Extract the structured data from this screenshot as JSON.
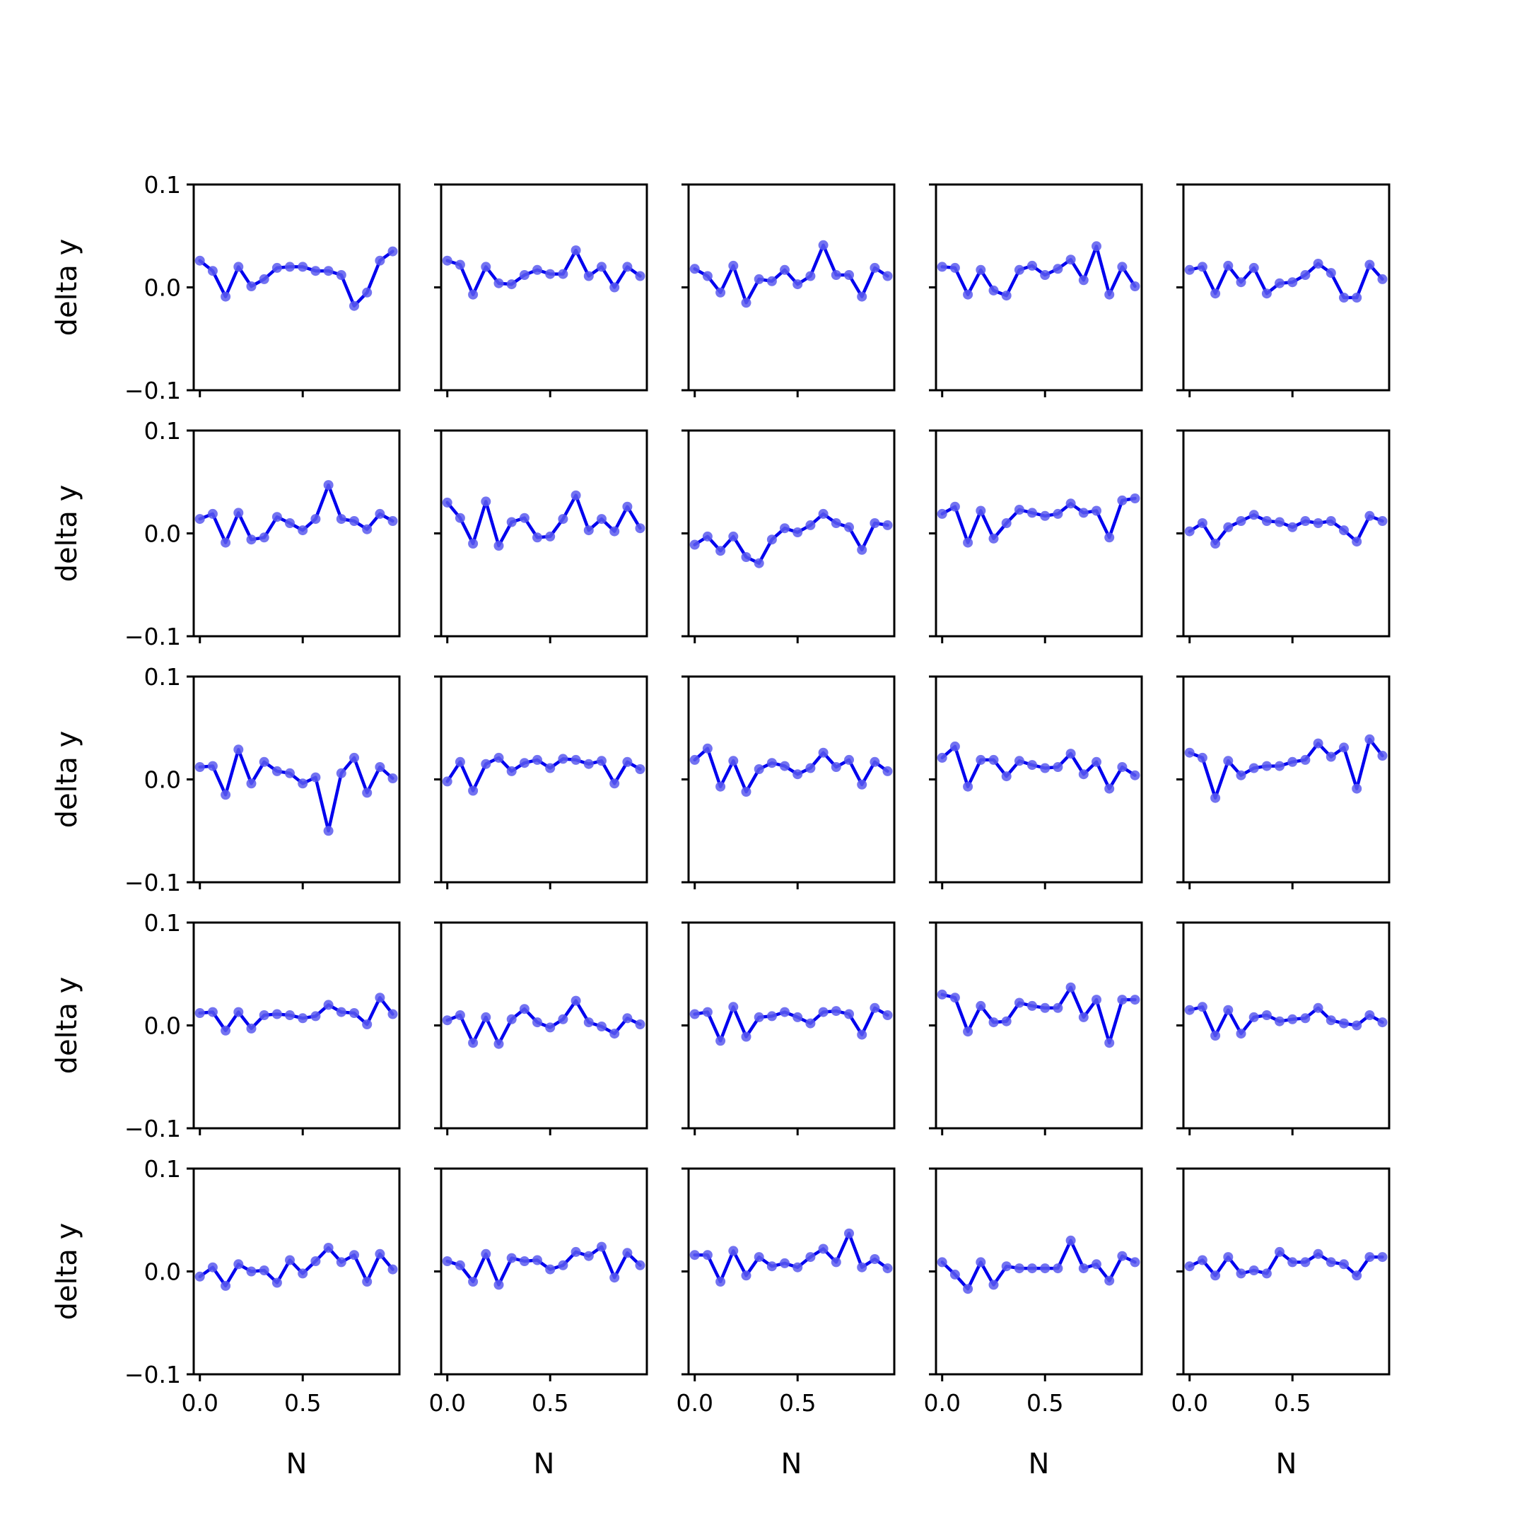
{
  "colors": {
    "line": "#0000ee",
    "marker": "#5b5bee",
    "axes": "#000000"
  },
  "chart_data": {
    "type": "line",
    "layout": "grid",
    "rows": 5,
    "cols": 5,
    "xlabel": "N",
    "ylabel": "delta y",
    "xlim": [
      -0.03,
      0.97
    ],
    "ylim": [
      -0.1,
      0.1
    ],
    "xticks": [
      0.0,
      0.5
    ],
    "xtick_labels": [
      "0.0",
      "0.5"
    ],
    "yticks": [
      -0.1,
      0.0,
      0.1
    ],
    "ytick_labels": [
      "−0.1",
      "0.0",
      "0.1"
    ],
    "x": [
      0.0,
      0.0625,
      0.125,
      0.1875,
      0.25,
      0.3125,
      0.375,
      0.4375,
      0.5,
      0.5625,
      0.625,
      0.6875,
      0.75,
      0.8125,
      0.875,
      0.9375
    ],
    "panels": [
      {
        "values": [
          0.026,
          0.016,
          -0.009,
          0.02,
          0.001,
          0.008,
          0.019,
          0.02,
          0.02,
          0.016,
          0.016,
          0.012,
          -0.018,
          -0.005,
          0.026,
          0.035
        ]
      },
      {
        "values": [
          0.026,
          0.022,
          -0.007,
          0.02,
          0.004,
          0.003,
          0.012,
          0.017,
          0.013,
          0.013,
          0.036,
          0.011,
          0.02,
          0.0,
          0.02,
          0.011
        ]
      },
      {
        "values": [
          0.018,
          0.011,
          -0.005,
          0.021,
          -0.015,
          0.008,
          0.006,
          0.017,
          0.003,
          0.011,
          0.041,
          0.012,
          0.012,
          -0.009,
          0.019,
          0.011
        ]
      },
      {
        "values": [
          0.02,
          0.019,
          -0.007,
          0.017,
          -0.003,
          -0.008,
          0.017,
          0.021,
          0.012,
          0.018,
          0.027,
          0.007,
          0.04,
          -0.007,
          0.02,
          0.001
        ]
      },
      {
        "values": [
          0.017,
          0.02,
          -0.006,
          0.021,
          0.005,
          0.019,
          -0.006,
          0.004,
          0.005,
          0.012,
          0.023,
          0.014,
          -0.01,
          -0.01,
          0.022,
          0.008
        ]
      },
      {
        "values": [
          0.014,
          0.019,
          -0.009,
          0.02,
          -0.006,
          -0.004,
          0.016,
          0.01,
          0.003,
          0.014,
          0.047,
          0.014,
          0.012,
          0.004,
          0.019,
          0.012
        ]
      },
      {
        "values": [
          0.03,
          0.015,
          -0.01,
          0.031,
          -0.012,
          0.011,
          0.015,
          -0.004,
          -0.003,
          0.014,
          0.037,
          0.003,
          0.014,
          0.002,
          0.026,
          0.005
        ]
      },
      {
        "values": [
          -0.011,
          -0.003,
          -0.017,
          -0.003,
          -0.023,
          -0.029,
          -0.006,
          0.005,
          0.001,
          0.008,
          0.019,
          0.01,
          0.006,
          -0.016,
          0.01,
          0.008
        ]
      },
      {
        "values": [
          0.019,
          0.026,
          -0.009,
          0.022,
          -0.005,
          0.01,
          0.023,
          0.02,
          0.017,
          0.019,
          0.029,
          0.02,
          0.022,
          -0.004,
          0.032,
          0.034
        ]
      },
      {
        "values": [
          0.002,
          0.01,
          -0.01,
          0.006,
          0.012,
          0.018,
          0.012,
          0.011,
          0.006,
          0.012,
          0.01,
          0.012,
          0.003,
          -0.008,
          0.017,
          0.012
        ]
      },
      {
        "values": [
          0.012,
          0.013,
          -0.015,
          0.029,
          -0.004,
          0.017,
          0.008,
          0.006,
          -0.004,
          0.002,
          -0.05,
          0.006,
          0.021,
          -0.013,
          0.012,
          0.001
        ]
      },
      {
        "values": [
          -0.002,
          0.017,
          -0.011,
          0.015,
          0.021,
          0.008,
          0.016,
          0.019,
          0.011,
          0.02,
          0.019,
          0.015,
          0.018,
          -0.004,
          0.017,
          0.01
        ]
      },
      {
        "values": [
          0.019,
          0.03,
          -0.007,
          0.018,
          -0.012,
          0.01,
          0.016,
          0.013,
          0.005,
          0.011,
          0.026,
          0.012,
          0.019,
          -0.005,
          0.017,
          0.008
        ]
      },
      {
        "values": [
          0.021,
          0.032,
          -0.007,
          0.019,
          0.019,
          0.003,
          0.018,
          0.014,
          0.011,
          0.012,
          0.025,
          0.005,
          0.017,
          -0.009,
          0.012,
          0.004
        ]
      },
      {
        "values": [
          0.026,
          0.021,
          -0.018,
          0.018,
          0.004,
          0.011,
          0.013,
          0.013,
          0.017,
          0.019,
          0.035,
          0.022,
          0.031,
          -0.009,
          0.039,
          0.023
        ]
      },
      {
        "values": [
          0.012,
          0.013,
          -0.005,
          0.013,
          -0.003,
          0.01,
          0.011,
          0.01,
          0.007,
          0.009,
          0.02,
          0.013,
          0.012,
          0.001,
          0.027,
          0.011
        ]
      },
      {
        "values": [
          0.005,
          0.01,
          -0.017,
          0.008,
          -0.018,
          0.006,
          0.016,
          0.003,
          -0.002,
          0.006,
          0.024,
          0.003,
          -0.001,
          -0.008,
          0.007,
          0.001
        ]
      },
      {
        "values": [
          0.011,
          0.013,
          -0.015,
          0.018,
          -0.011,
          0.008,
          0.009,
          0.013,
          0.008,
          0.002,
          0.013,
          0.014,
          0.011,
          -0.009,
          0.017,
          0.01
        ]
      },
      {
        "values": [
          0.03,
          0.027,
          -0.006,
          0.019,
          0.003,
          0.004,
          0.022,
          0.019,
          0.017,
          0.017,
          0.037,
          0.008,
          0.025,
          -0.017,
          0.025,
          0.025
        ]
      },
      {
        "values": [
          0.015,
          0.018,
          -0.01,
          0.015,
          -0.008,
          0.008,
          0.01,
          0.004,
          0.006,
          0.007,
          0.017,
          0.005,
          0.002,
          0.0,
          0.01,
          0.003
        ]
      },
      {
        "values": [
          -0.005,
          0.004,
          -0.014,
          0.007,
          0.0,
          0.001,
          -0.011,
          0.011,
          -0.002,
          0.01,
          0.023,
          0.009,
          0.016,
          -0.01,
          0.017,
          0.002
        ]
      },
      {
        "values": [
          0.01,
          0.006,
          -0.01,
          0.017,
          -0.013,
          0.013,
          0.01,
          0.011,
          0.002,
          0.006,
          0.019,
          0.015,
          0.024,
          -0.006,
          0.018,
          0.006
        ]
      },
      {
        "values": [
          0.016,
          0.016,
          -0.01,
          0.02,
          -0.004,
          0.014,
          0.005,
          0.008,
          0.004,
          0.014,
          0.022,
          0.009,
          0.037,
          0.004,
          0.012,
          0.003
        ]
      },
      {
        "values": [
          0.009,
          -0.003,
          -0.017,
          0.009,
          -0.013,
          0.005,
          0.003,
          0.003,
          0.003,
          0.003,
          0.03,
          0.003,
          0.007,
          -0.009,
          0.015,
          0.009
        ]
      },
      {
        "values": [
          0.005,
          0.011,
          -0.004,
          0.014,
          -0.002,
          0.001,
          -0.002,
          0.019,
          0.009,
          0.009,
          0.017,
          0.009,
          0.007,
          -0.004,
          0.014,
          0.014
        ]
      }
    ]
  }
}
